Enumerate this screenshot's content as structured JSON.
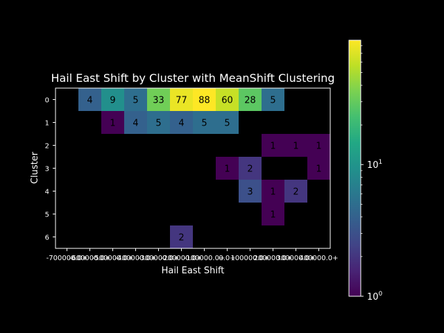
{
  "chart_data": {
    "type": "heatmap",
    "title": "Hail East Shift by Cluster with MeanShift Clustering",
    "xlabel": "Hail East Shift",
    "ylabel": "Cluster",
    "x_tick_labels": [
      "-700000.0+",
      "-600000.0+",
      "-500000.0+",
      "-400000.0+",
      "-300000.0+",
      "-200000.0+",
      "-100000.0+",
      "0.0+",
      "100000.0+",
      "200000.0+",
      "300000.0+",
      "400000.0+"
    ],
    "y_tick_labels": [
      "0",
      "1",
      "2",
      "3",
      "4",
      "5",
      "6"
    ],
    "columns": 12,
    "rows": [
      [
        null,
        4,
        9,
        5,
        33,
        77,
        88,
        60,
        28,
        5,
        null,
        null
      ],
      [
        null,
        null,
        1,
        4,
        5,
        4,
        5,
        5,
        null,
        null,
        null,
        null
      ],
      [
        null,
        null,
        null,
        null,
        null,
        null,
        null,
        null,
        null,
        1,
        1,
        1
      ],
      [
        null,
        null,
        null,
        null,
        null,
        null,
        null,
        1,
        2,
        null,
        null,
        1
      ],
      [
        null,
        null,
        null,
        null,
        null,
        null,
        null,
        null,
        3,
        1,
        2,
        null
      ],
      [
        null,
        null,
        null,
        null,
        null,
        null,
        null,
        null,
        null,
        1,
        null,
        null
      ],
      [
        null,
        null,
        null,
        null,
        null,
        2,
        null,
        null,
        null,
        null,
        null,
        null
      ]
    ],
    "colorbar": {
      "scale": "log",
      "colormap": "viridis",
      "range": [
        1,
        88
      ],
      "tick_labels": [
        "10^0",
        "10^1"
      ],
      "tick_values": [
        1,
        10
      ]
    },
    "background": "#000000",
    "foreground": "#ffffff",
    "cell_label_color": "#000000"
  }
}
